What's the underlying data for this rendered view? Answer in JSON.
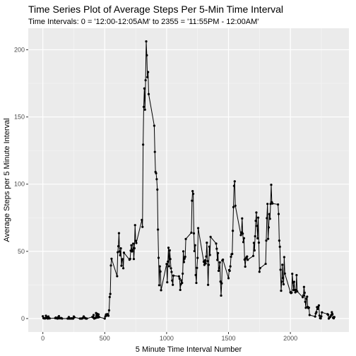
{
  "chart_data": {
    "type": "line",
    "title": "Time Series Plot of Average Steps Per 5-Min Time Interval",
    "subtitle": "Time Intervals: 0 = '12:00-12:05AM' to 2355 = '11:55PM - 12:00AM'",
    "xlabel": "5 Minute Time Interval Number",
    "ylabel": "Average Steps per 5 Minute Interval",
    "xlim": [
      -118,
      2473
    ],
    "ylim": [
      -10,
      216
    ],
    "x_ticks": [
      0,
      500,
      1000,
      1500,
      2000
    ],
    "y_ticks": [
      0,
      50,
      100,
      150,
      200
    ],
    "x_tick_labels": [
      "0",
      "500",
      "1000",
      "1500",
      "2000"
    ],
    "y_tick_labels": [
      "0",
      "50",
      "100",
      "150",
      "200"
    ],
    "grid": true,
    "background": "#ebebeb",
    "series": [
      {
        "markers": true,
        "color": "#000000",
        "points": [
          [
            0,
            1.7
          ],
          [
            5,
            0.3
          ],
          [
            10,
            0.1
          ],
          [
            15,
            0.2
          ],
          [
            20,
            0.1
          ],
          [
            25,
            2.1
          ],
          [
            30,
            0.5
          ],
          [
            35,
            0.9
          ],
          [
            40,
            0
          ],
          [
            45,
            1.5
          ],
          [
            50,
            0.3
          ],
          [
            55,
            0.1
          ],
          [
            100,
            0.3
          ],
          [
            105,
            0.7
          ],
          [
            110,
            0.2
          ],
          [
            115,
            0.3
          ],
          [
            120,
            0
          ],
          [
            125,
            1.1
          ],
          [
            130,
            1.8
          ],
          [
            135,
            0.2
          ],
          [
            140,
            0.2
          ],
          [
            145,
            0.4
          ],
          [
            150,
            0.3
          ],
          [
            155,
            0
          ],
          [
            200,
            0
          ],
          [
            205,
            0
          ],
          [
            210,
            1.1
          ],
          [
            215,
            0
          ],
          [
            220,
            0
          ],
          [
            225,
            0.1
          ],
          [
            230,
            0
          ],
          [
            235,
            0.2
          ],
          [
            240,
            0
          ],
          [
            245,
            0
          ],
          [
            250,
            1.5
          ],
          [
            255,
            0.9
          ],
          [
            300,
            0
          ],
          [
            305,
            0
          ],
          [
            310,
            0
          ],
          [
            315,
            0
          ],
          [
            320,
            0.2
          ],
          [
            325,
            0.6
          ],
          [
            330,
            1.6
          ],
          [
            335,
            0.6
          ],
          [
            340,
            0.5
          ],
          [
            345,
            0.1
          ],
          [
            350,
            0
          ],
          [
            355,
            0
          ],
          [
            400,
            1.2
          ],
          [
            405,
            0.9
          ],
          [
            410,
            2.6
          ],
          [
            415,
            0
          ],
          [
            420,
            0.3
          ],
          [
            425,
            0.4
          ],
          [
            430,
            4.1
          ],
          [
            435,
            0.7
          ],
          [
            440,
            3.5
          ],
          [
            445,
            0.8
          ],
          [
            450,
            3.1
          ],
          [
            455,
            1.1
          ],
          [
            500,
            0
          ],
          [
            505,
            1.6
          ],
          [
            510,
            3
          ],
          [
            515,
            2.2
          ],
          [
            520,
            3.3
          ],
          [
            525,
            3
          ],
          [
            530,
            2.1
          ],
          [
            535,
            6.1
          ],
          [
            540,
            16
          ],
          [
            545,
            18.3
          ],
          [
            550,
            39.5
          ],
          [
            555,
            44.5
          ],
          [
            600,
            31.5
          ],
          [
            605,
            49.3
          ],
          [
            610,
            53.8
          ],
          [
            615,
            63.5
          ],
          [
            620,
            50
          ],
          [
            625,
            47.1
          ],
          [
            630,
            52.2
          ],
          [
            635,
            39.3
          ],
          [
            640,
            44
          ],
          [
            645,
            44.2
          ],
          [
            650,
            37.4
          ],
          [
            655,
            49
          ],
          [
            700,
            43.8
          ],
          [
            705,
            44.4
          ],
          [
            710,
            50.5
          ],
          [
            715,
            54.5
          ],
          [
            720,
            49.9
          ],
          [
            725,
            50.9
          ],
          [
            730,
            55.7
          ],
          [
            735,
            44.3
          ],
          [
            740,
            52.3
          ],
          [
            745,
            69.5
          ],
          [
            750,
            57.8
          ],
          [
            755,
            56.2
          ],
          [
            800,
            73.4
          ],
          [
            805,
            68.2
          ],
          [
            810,
            129.4
          ],
          [
            815,
            157.5
          ],
          [
            820,
            171.2
          ],
          [
            825,
            155.4
          ],
          [
            830,
            177.3
          ],
          [
            835,
            206.2
          ],
          [
            840,
            195.9
          ],
          [
            845,
            179.6
          ],
          [
            850,
            183.4
          ],
          [
            855,
            167
          ],
          [
            900,
            143.5
          ],
          [
            905,
            124
          ],
          [
            910,
            109.1
          ],
          [
            915,
            108.1
          ],
          [
            920,
            103.7
          ],
          [
            925,
            95.96
          ],
          [
            930,
            66.2
          ],
          [
            935,
            45.2
          ],
          [
            940,
            24.8
          ],
          [
            945,
            38.8
          ],
          [
            950,
            34.98
          ],
          [
            955,
            21.06
          ],
          [
            1000,
            40.6
          ],
          [
            1005,
            26.98
          ],
          [
            1010,
            42.4
          ],
          [
            1015,
            52.7
          ],
          [
            1020,
            38.9
          ],
          [
            1025,
            50.8
          ],
          [
            1030,
            44.3
          ],
          [
            1035,
            37.4
          ],
          [
            1040,
            34.7
          ],
          [
            1045,
            28.3
          ],
          [
            1050,
            25.1
          ],
          [
            1055,
            31.9
          ],
          [
            1100,
            31.4
          ],
          [
            1105,
            29.7
          ],
          [
            1110,
            21.3
          ],
          [
            1115,
            25.5
          ],
          [
            1120,
            28.4
          ],
          [
            1125,
            26.5
          ],
          [
            1130,
            33.4
          ],
          [
            1135,
            49.98
          ],
          [
            1140,
            42
          ],
          [
            1145,
            44.6
          ],
          [
            1150,
            46
          ],
          [
            1155,
            59.2
          ],
          [
            1200,
            63.9
          ],
          [
            1205,
            87.7
          ],
          [
            1210,
            94.8
          ],
          [
            1215,
            92.8
          ],
          [
            1220,
            63.4
          ],
          [
            1225,
            50.2
          ],
          [
            1230,
            54.5
          ],
          [
            1235,
            32.4
          ],
          [
            1240,
            26.5
          ],
          [
            1245,
            37.7
          ],
          [
            1250,
            45.1
          ],
          [
            1255,
            67.3
          ],
          [
            1300,
            42.3
          ],
          [
            1305,
            39.9
          ],
          [
            1310,
            43.3
          ],
          [
            1315,
            40.98
          ],
          [
            1320,
            46.2
          ],
          [
            1325,
            56.4
          ],
          [
            1330,
            42.8
          ],
          [
            1335,
            25.1
          ],
          [
            1340,
            39.97
          ],
          [
            1345,
            53.5
          ],
          [
            1350,
            47.3
          ],
          [
            1355,
            60.8
          ],
          [
            1400,
            55.8
          ],
          [
            1405,
            51.96
          ],
          [
            1410,
            43.6
          ],
          [
            1415,
            48.7
          ],
          [
            1420,
            35.5
          ],
          [
            1425,
            37.5
          ],
          [
            1430,
            41.8
          ],
          [
            1435,
            27.5
          ],
          [
            1440,
            17.1
          ],
          [
            1445,
            26.2
          ],
          [
            1450,
            43.2
          ],
          [
            1455,
            43.8
          ],
          [
            1500,
            30
          ],
          [
            1505,
            36.1
          ],
          [
            1510,
            35.5
          ],
          [
            1515,
            38.8
          ],
          [
            1520,
            45.96
          ],
          [
            1525,
            47.8
          ],
          [
            1530,
            48.1
          ],
          [
            1535,
            65.3
          ],
          [
            1540,
            82.9
          ],
          [
            1545,
            98.7
          ],
          [
            1550,
            102.1
          ],
          [
            1555,
            83.96
          ],
          [
            1600,
            62.1
          ],
          [
            1605,
            64.1
          ],
          [
            1610,
            74.5
          ],
          [
            1615,
            63.2
          ],
          [
            1620,
            56.9
          ],
          [
            1625,
            59.8
          ],
          [
            1630,
            43.9
          ],
          [
            1635,
            38.6
          ],
          [
            1640,
            44.7
          ],
          [
            1645,
            45.5
          ],
          [
            1650,
            46.2
          ],
          [
            1655,
            43.7
          ],
          [
            1700,
            46.6
          ],
          [
            1705,
            56.3
          ],
          [
            1710,
            50.7
          ],
          [
            1715,
            61.2
          ],
          [
            1720,
            72.7
          ],
          [
            1725,
            78.9
          ],
          [
            1730,
            68.9
          ],
          [
            1735,
            59.7
          ],
          [
            1740,
            75.1
          ],
          [
            1745,
            56.5
          ],
          [
            1750,
            34.8
          ],
          [
            1755,
            37.5
          ],
          [
            1800,
            40.7
          ],
          [
            1805,
            58
          ],
          [
            1810,
            74.7
          ],
          [
            1815,
            85.3
          ],
          [
            1820,
            59.3
          ],
          [
            1825,
            67.8
          ],
          [
            1830,
            77.7
          ],
          [
            1835,
            74.2
          ],
          [
            1840,
            85.3
          ],
          [
            1845,
            99.5
          ],
          [
            1850,
            86.6
          ],
          [
            1855,
            85.6
          ],
          [
            1900,
            84.9
          ],
          [
            1905,
            77.8
          ],
          [
            1910,
            58
          ],
          [
            1915,
            53.4
          ],
          [
            1920,
            36.3
          ],
          [
            1925,
            20.7
          ],
          [
            1930,
            27.4
          ],
          [
            1935,
            40
          ],
          [
            1940,
            30.2
          ],
          [
            1945,
            25.5
          ],
          [
            1950,
            45.7
          ],
          [
            1955,
            33.5
          ],
          [
            2000,
            19.6
          ],
          [
            2005,
            19
          ],
          [
            2010,
            19.3
          ],
          [
            2015,
            33.3
          ],
          [
            2020,
            26.8
          ],
          [
            2025,
            21.2
          ],
          [
            2030,
            27.3
          ],
          [
            2035,
            21.3
          ],
          [
            2040,
            19.5
          ],
          [
            2045,
            21.3
          ],
          [
            2050,
            32.3
          ],
          [
            2055,
            20.2
          ],
          [
            2100,
            15.9
          ],
          [
            2105,
            17.2
          ],
          [
            2110,
            23.5
          ],
          [
            2115,
            19.2
          ],
          [
            2120,
            12.5
          ],
          [
            2125,
            8
          ],
          [
            2130,
            14.7
          ],
          [
            2135,
            16.3
          ],
          [
            2140,
            8.7
          ],
          [
            2145,
            7.8
          ],
          [
            2150,
            8.1
          ],
          [
            2155,
            2.6
          ],
          [
            2200,
            1.5
          ],
          [
            2205,
            3.7
          ],
          [
            2210,
            4.8
          ],
          [
            2215,
            8.5
          ],
          [
            2220,
            7.1
          ],
          [
            2225,
            8.7
          ],
          [
            2230,
            9.8
          ],
          [
            2235,
            2.2
          ],
          [
            2240,
            0.3
          ],
          [
            2245,
            0.1
          ],
          [
            2250,
            1.6
          ],
          [
            2255,
            4.6
          ],
          [
            2300,
            3.3
          ],
          [
            2305,
            2.8
          ],
          [
            2310,
            0
          ],
          [
            2315,
            0.8
          ],
          [
            2320,
            1
          ],
          [
            2325,
            1.6
          ],
          [
            2330,
            2.6
          ],
          [
            2335,
            4.7
          ],
          [
            2340,
            3.3
          ],
          [
            2345,
            0.6
          ],
          [
            2350,
            0.2
          ],
          [
            2355,
            1.1
          ]
        ]
      }
    ]
  }
}
